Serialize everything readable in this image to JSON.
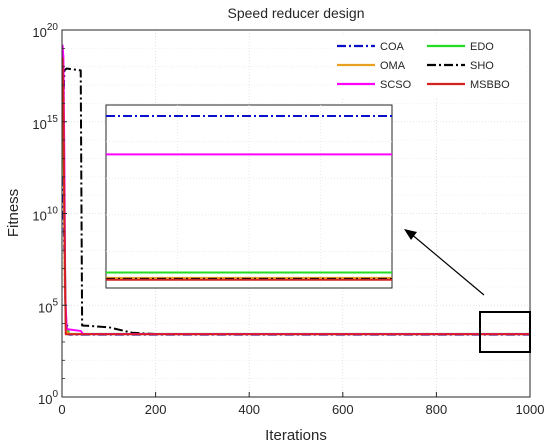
{
  "chart_data": {
    "type": "line",
    "title": "Speed reducer design",
    "xlabel": "Iterations",
    "ylabel": "Fitness",
    "xlim": [
      0,
      1000
    ],
    "ylim_log10": [
      0,
      20
    ],
    "y_scale": "log",
    "grid": true,
    "x_ticks": [
      "0",
      "200",
      "400",
      "600",
      "800",
      "1000"
    ],
    "y_ticks": [
      {
        "base": "10",
        "exp": "0"
      },
      {
        "base": "10",
        "exp": "5"
      },
      {
        "base": "10",
        "exp": "10"
      },
      {
        "base": "10",
        "exp": "15"
      },
      {
        "base": "10",
        "exp": "20"
      }
    ],
    "legend": {
      "position": "top-right",
      "columns": 2,
      "entries": [
        "COA",
        "OMA",
        "SCSO",
        "EDO",
        "SHO",
        "MSBBO"
      ]
    },
    "series": [
      {
        "name": "COA",
        "color": "#0a10c8",
        "dash": "dashdot",
        "points": [
          [
            1,
            12.0
          ],
          [
            4,
            9.0
          ],
          [
            8,
            4.3
          ],
          [
            15,
            3.4
          ],
          [
            1000,
            3.4
          ]
        ]
      },
      {
        "name": "OMA",
        "color": "#e8a020",
        "dash": "solid",
        "points": [
          [
            1,
            19.0
          ],
          [
            3,
            15.0
          ],
          [
            6,
            6.0
          ],
          [
            10,
            3.5
          ],
          [
            20,
            3.43
          ],
          [
            1000,
            3.43
          ]
        ]
      },
      {
        "name": "SCSO",
        "color": "#ff00ff",
        "dash": "solid",
        "points": [
          [
            1,
            19.2
          ],
          [
            3,
            18.5
          ],
          [
            5,
            13.0
          ],
          [
            7,
            5.5
          ],
          [
            10,
            3.7
          ],
          [
            40,
            3.6
          ],
          [
            45,
            3.43
          ],
          [
            1000,
            3.43
          ]
        ]
      },
      {
        "name": "EDO",
        "color": "#22dd22",
        "dash": "solid",
        "points": [
          [
            1,
            16.0
          ],
          [
            4,
            12.0
          ],
          [
            8,
            4.0
          ],
          [
            15,
            3.44
          ],
          [
            1000,
            3.44
          ]
        ]
      },
      {
        "name": "SHO",
        "color": "#000000",
        "dash": "dashdot",
        "points": [
          [
            1,
            18.0
          ],
          [
            3,
            16.0
          ],
          [
            5,
            17.8
          ],
          [
            10,
            17.9
          ],
          [
            40,
            17.8
          ],
          [
            43,
            3.9
          ],
          [
            100,
            3.8
          ],
          [
            150,
            3.5
          ],
          [
            200,
            3.43
          ],
          [
            1000,
            3.43
          ]
        ]
      },
      {
        "name": "MSBBO",
        "color": "#d42020",
        "dash": "solid",
        "points": [
          [
            1,
            18.5
          ],
          [
            3,
            16.0
          ],
          [
            5,
            10.0
          ],
          [
            8,
            3.42
          ],
          [
            1000,
            3.42
          ]
        ]
      }
    ],
    "inset": {
      "source_x": [
        895,
        1000
      ],
      "inset_levels": [
        {
          "series": "COA",
          "level": 0.06
        },
        {
          "series": "SCSO",
          "level": 0.27
        },
        {
          "series": "EDO",
          "level": 0.915
        },
        {
          "series": "OMA",
          "level": 0.945
        },
        {
          "series": "SHO",
          "level": 0.95
        },
        {
          "series": "MSBBO",
          "level": 0.955
        }
      ]
    }
  }
}
